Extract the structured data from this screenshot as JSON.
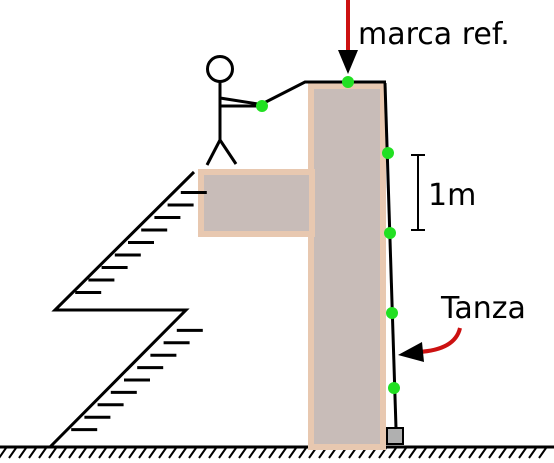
{
  "labels": {
    "reference_mark": "marca ref.",
    "distance": "1m",
    "line": "Tanza"
  },
  "colors": {
    "wall": "#c8bcb8",
    "wall_border": "#e8c8b0",
    "markers": "#22e022",
    "arrows": "#cc1111",
    "ink": "#000000",
    "weight": "#b0b0b0"
  },
  "icons": [
    "stick-figure",
    "ladder",
    "plumb-weight",
    "ground-hatching"
  ]
}
